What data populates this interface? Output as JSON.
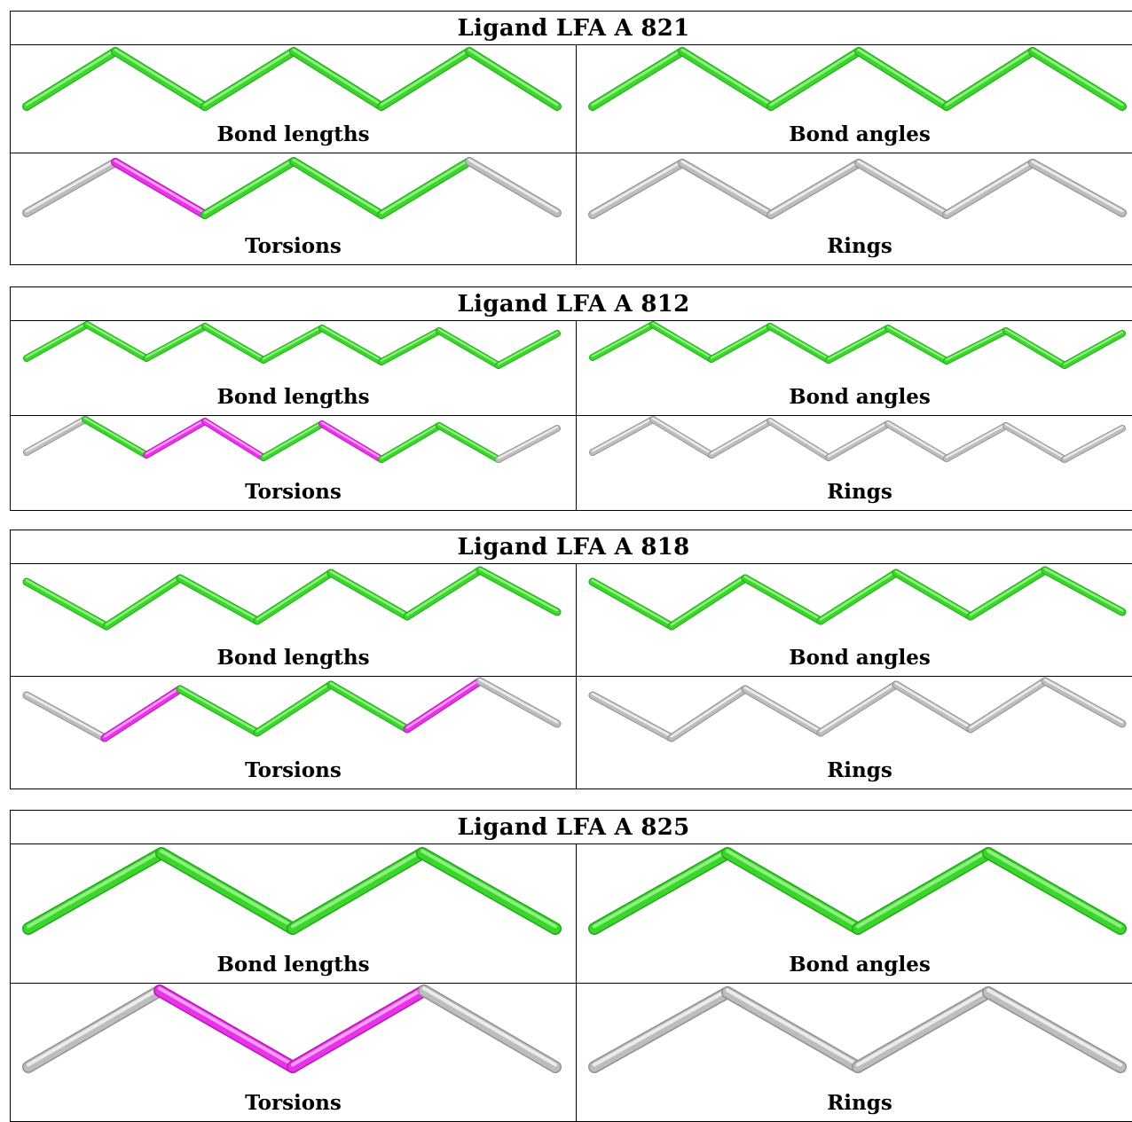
{
  "palette": {
    "green": "#3ad62c",
    "green_light": "#8ef07e",
    "green_dark": "#26a81c",
    "magenta": "#ea32ea",
    "magenta_light": "#f7a0f7",
    "magenta_dark": "#b81cb8",
    "grey": "#bdbdbd",
    "grey_light": "#ececec",
    "grey_dark": "#929292"
  },
  "ligands": [
    {
      "title": "Ligand LFA A 821",
      "panels": [
        {
          "caption": "Bond lengths",
          "bond_colors": [
            "green",
            "green",
            "green",
            "green",
            "green",
            "green"
          ]
        },
        {
          "caption": "Bond angles",
          "bond_colors": [
            "green",
            "green",
            "green",
            "green",
            "green",
            "green"
          ]
        },
        {
          "caption": "Torsions",
          "bond_colors": [
            "grey",
            "magenta",
            "green",
            "green",
            "green",
            "grey"
          ]
        },
        {
          "caption": "Rings",
          "bond_colors": [
            "grey",
            "grey",
            "grey",
            "grey",
            "grey",
            "grey"
          ]
        }
      ]
    },
    {
      "title": "Ligand LFA A 812",
      "panels": [
        {
          "caption": "Bond lengths",
          "bond_colors": [
            "green",
            "green",
            "green",
            "green",
            "green",
            "green",
            "green",
            "green",
            "green"
          ]
        },
        {
          "caption": "Bond angles",
          "bond_colors": [
            "green",
            "green",
            "green",
            "green",
            "green",
            "green",
            "green",
            "green",
            "green"
          ]
        },
        {
          "caption": "Torsions",
          "bond_colors": [
            "grey",
            "green",
            "magenta",
            "magenta",
            "green",
            "magenta",
            "green",
            "green",
            "grey"
          ]
        },
        {
          "caption": "Rings",
          "bond_colors": [
            "grey",
            "grey",
            "grey",
            "grey",
            "grey",
            "grey",
            "grey",
            "grey",
            "grey"
          ]
        }
      ]
    },
    {
      "title": "Ligand LFA A 818",
      "panels": [
        {
          "caption": "Bond lengths",
          "bond_colors": [
            "green",
            "green",
            "green",
            "green",
            "green",
            "green",
            "green"
          ]
        },
        {
          "caption": "Bond angles",
          "bond_colors": [
            "green",
            "green",
            "green",
            "green",
            "green",
            "green",
            "green"
          ]
        },
        {
          "caption": "Torsions",
          "bond_colors": [
            "grey",
            "magenta",
            "green",
            "green",
            "green",
            "magenta",
            "grey"
          ]
        },
        {
          "caption": "Rings",
          "bond_colors": [
            "grey",
            "grey",
            "grey",
            "grey",
            "grey",
            "grey",
            "grey"
          ]
        }
      ]
    },
    {
      "title": "Ligand LFA A 825",
      "panels": [
        {
          "caption": "Bond lengths",
          "bond_colors": [
            "green",
            "green",
            "green",
            "green"
          ]
        },
        {
          "caption": "Bond angles",
          "bond_colors": [
            "green",
            "green",
            "green",
            "green"
          ]
        },
        {
          "caption": "Torsions",
          "bond_colors": [
            "grey",
            "magenta",
            "magenta",
            "grey"
          ]
        },
        {
          "caption": "Rings",
          "bond_colors": [
            "grey",
            "grey",
            "grey",
            "grey"
          ]
        }
      ]
    }
  ]
}
